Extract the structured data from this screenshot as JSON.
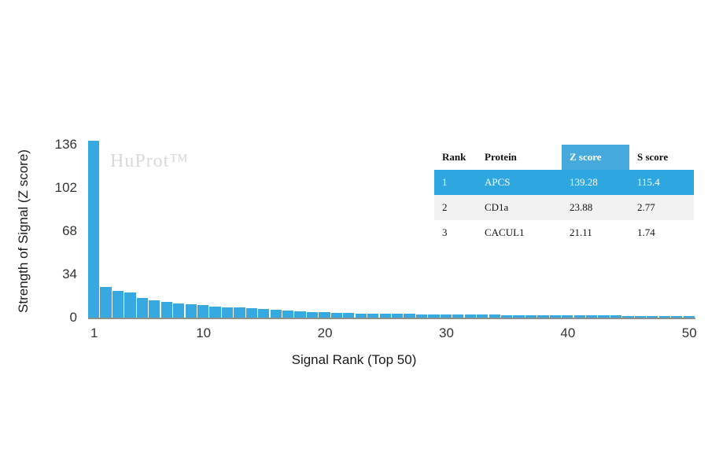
{
  "chart": {
    "watermark": "HuProt™",
    "y_axis_label": "Strength of Signal (Z score)",
    "x_axis_label": "Signal Rank (Top 50)",
    "bar_color": "#36a9e1",
    "axis_line_color": "#8f8f8f",
    "watermark_color": "#d9d9d9"
  },
  "chart_data": {
    "type": "bar",
    "title": "",
    "xlabel": "Signal Rank (Top 50)",
    "ylabel": "Strength of Signal (Z score)",
    "x": [
      1,
      2,
      3,
      4,
      5,
      6,
      7,
      8,
      9,
      10,
      11,
      12,
      13,
      14,
      15,
      16,
      17,
      18,
      19,
      20,
      21,
      22,
      23,
      24,
      25,
      26,
      27,
      28,
      29,
      30,
      31,
      32,
      33,
      34,
      35,
      36,
      37,
      38,
      39,
      40,
      41,
      42,
      43,
      44,
      45,
      46,
      47,
      48,
      49,
      50
    ],
    "values": [
      139.28,
      23.88,
      21.11,
      19.5,
      15.2,
      13.4,
      12.1,
      11.3,
      10.4,
      9.6,
      8.9,
      8.3,
      7.8,
      7.2,
      6.7,
      6.2,
      5.6,
      5.0,
      4.5,
      4.1,
      3.8,
      3.6,
      3.4,
      3.2,
      3.0,
      2.9,
      2.8,
      2.7,
      2.6,
      2.5,
      2.4,
      2.3,
      2.25,
      2.2,
      2.1,
      2.0,
      1.95,
      1.9,
      1.85,
      1.8,
      1.75,
      1.7,
      1.65,
      1.6,
      1.55,
      1.5,
      1.45,
      1.4,
      1.35,
      1.3
    ],
    "y_ticks": [
      0,
      34,
      68,
      102,
      136
    ],
    "x_ticks": [
      1,
      10,
      20,
      30,
      40,
      50
    ],
    "ylim": [
      0,
      136
    ],
    "grid": false,
    "legend": false
  },
  "table": {
    "headers": [
      "Rank",
      "Protein",
      "Z score",
      "S score"
    ],
    "rows": [
      {
        "rank": "1",
        "protein": "APCS",
        "z": "139.28",
        "s": "115.4"
      },
      {
        "rank": "2",
        "protein": "CD1a",
        "z": "23.88",
        "s": "2.77"
      },
      {
        "rank": "3",
        "protein": "CACUL1",
        "z": "21.11",
        "s": "1.74"
      }
    ],
    "accent": "#2ea7e0",
    "z_header_bg": "#45a9db",
    "alt_row_bg": "#f2f2f2"
  }
}
